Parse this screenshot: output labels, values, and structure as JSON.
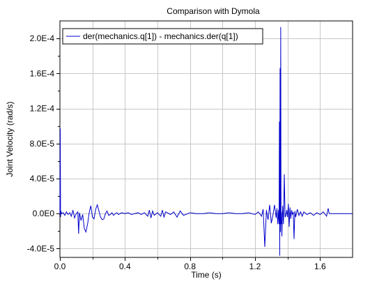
{
  "chart_data": {
    "type": "line",
    "title": "Comparison with Dymola",
    "xlabel": "Time (s)",
    "ylabel": "Joint Velocity  (rad/s)",
    "xlim": [
      0.0,
      1.8
    ],
    "ylim": [
      -5e-05,
      0.00022
    ],
    "xticks": [
      0.0,
      0.4,
      0.8,
      1.2,
      1.6
    ],
    "xtick_labels": [
      "0.0",
      "0.4",
      "0.8",
      "1.2",
      "1.6"
    ],
    "yticks": [
      -4e-05,
      0.0,
      4e-05,
      8e-05,
      0.00012,
      0.00016,
      0.0002
    ],
    "ytick_labels": [
      "-4.0E-5",
      "0.0E0",
      "4.0E-5",
      "8.0E-5",
      "1.2E-4",
      "1.6E-4",
      "2.0E-4"
    ],
    "grid": true,
    "legend_position": "top-left",
    "series": [
      {
        "name": "der(mechanics.q[1]) - mechanics.der(q[1])",
        "color": "#0000cc",
        "x": [
          0.0,
          0.002,
          0.004,
          0.006,
          0.01,
          0.02,
          0.03,
          0.04,
          0.05,
          0.06,
          0.07,
          0.08,
          0.09,
          0.1,
          0.11,
          0.115,
          0.12,
          0.13,
          0.14,
          0.15,
          0.16,
          0.17,
          0.18,
          0.19,
          0.2,
          0.21,
          0.22,
          0.23,
          0.24,
          0.25,
          0.26,
          0.27,
          0.28,
          0.29,
          0.3,
          0.31,
          0.32,
          0.33,
          0.34,
          0.35,
          0.36,
          0.38,
          0.4,
          0.42,
          0.44,
          0.46,
          0.48,
          0.5,
          0.52,
          0.54,
          0.55,
          0.56,
          0.57,
          0.58,
          0.6,
          0.62,
          0.63,
          0.64,
          0.65,
          0.66,
          0.68,
          0.7,
          0.72,
          0.74,
          0.76,
          0.8,
          0.84,
          0.88,
          0.92,
          0.96,
          1.0,
          1.04,
          1.08,
          1.12,
          1.16,
          1.2,
          1.22,
          1.24,
          1.25,
          1.26,
          1.27,
          1.28,
          1.29,
          1.3,
          1.31,
          1.32,
          1.33,
          1.335,
          1.34,
          1.345,
          1.348,
          1.35,
          1.352,
          1.354,
          1.356,
          1.358,
          1.36,
          1.362,
          1.365,
          1.37,
          1.375,
          1.38,
          1.385,
          1.39,
          1.395,
          1.4,
          1.405,
          1.41,
          1.415,
          1.42,
          1.425,
          1.43,
          1.435,
          1.44,
          1.445,
          1.45,
          1.46,
          1.47,
          1.48,
          1.49,
          1.5,
          1.52,
          1.54,
          1.56,
          1.58,
          1.6,
          1.62,
          1.64,
          1.65,
          1.655,
          1.66,
          1.67,
          1.68,
          1.7,
          1.72,
          1.74,
          1.76,
          1.78,
          1.8
        ],
        "values": [
          0.0,
          9.7e-05,
          -4e-06,
          3e-06,
          0.0,
          1e-06,
          -2e-06,
          2e-06,
          -1e-06,
          1e-06,
          -3e-06,
          4e-06,
          -5e-06,
          0.0,
          2e-06,
          -2.3e-05,
          1e-06,
          -8e-06,
          -1e-06,
          -1.7e-05,
          -2.1e-05,
          -1.2e-05,
          1e-06,
          9e-06,
          -4e-06,
          -6e-06,
          5e-06,
          1e-05,
          3e-06,
          -4e-06,
          -7e-06,
          -6e-06,
          0.0,
          3e-06,
          -2e-06,
          -1e-06,
          1e-06,
          -2e-06,
          0.0,
          1e-06,
          -1e-06,
          1e-06,
          0.0,
          1e-06,
          -1e-06,
          0.0,
          1e-06,
          -1e-06,
          1e-06,
          -3e-06,
          4e-06,
          -5e-06,
          3e-06,
          -2e-06,
          1e-06,
          -3e-06,
          4e-06,
          -4e-06,
          2e-06,
          1e-06,
          -1e-06,
          2e-06,
          -4e-06,
          3e-06,
          -2e-06,
          1e-06,
          0.0,
          0.0,
          1e-06,
          0.0,
          0.0,
          1e-06,
          0.0,
          0.0,
          1e-06,
          -1e-06,
          2e-06,
          -3e-06,
          5e-06,
          -3.8e-05,
          4e-06,
          -7e-06,
          1e-05,
          -1.1e-05,
          -2e-06,
          1e-05,
          -5e-06,
          6e-06,
          -1.2e-05,
          4e-06,
          -1.2e-05,
          0.000105,
          -4.8e-05,
          0.000166,
          -2.1e-05,
          0.000213,
          -1.2e-05,
          2e-06,
          -2.6e-05,
          9e-06,
          -1.2e-05,
          4.5e-05,
          -4e-06,
          -2e-06,
          4e-06,
          -4e-06,
          1.1e-05,
          -1.5e-05,
          7e-06,
          -6e-06,
          4e-06,
          -1e-06,
          2e-06,
          -2.9e-05,
          3e-06,
          -4e-06,
          5e-06,
          -2e-06,
          2e-06,
          -3e-06,
          2e-06,
          -1e-06,
          1e-06,
          -2e-06,
          1e-06,
          -1e-06,
          2e-06,
          -3e-06,
          6e-06,
          1e-06,
          0.0,
          0.0,
          0.0,
          0.0,
          0.0,
          0.0,
          0.0,
          0.0,
          0.0
        ]
      }
    ]
  }
}
